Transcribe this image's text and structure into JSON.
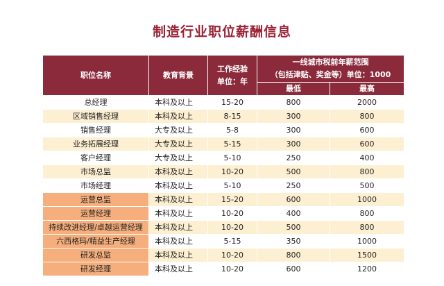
{
  "title": "制造行业职位薪酬信息",
  "table": {
    "header": {
      "position": "职位名称",
      "education": "教育背景",
      "experience_line1": "工作经验",
      "experience_line2": "单位：年",
      "salary_line1": "一线城市税前年薪范围",
      "salary_line2": "（包括津贴、奖金等）单位：1000",
      "min": "最低",
      "max": "最高"
    },
    "rows": [
      {
        "position": "总经理",
        "education": "本科及以上",
        "experience": "15-20",
        "min": "800",
        "max": "2000",
        "highlight": false
      },
      {
        "position": "区域销售经理",
        "education": "本科及以上",
        "experience": "8-15",
        "min": "300",
        "max": "800",
        "highlight": false
      },
      {
        "position": "销售经理",
        "education": "大专及以上",
        "experience": "5-8",
        "min": "300",
        "max": "600",
        "highlight": false
      },
      {
        "position": "业务拓展经理",
        "education": "大专及以上",
        "experience": "5-15",
        "min": "300",
        "max": "600",
        "highlight": false
      },
      {
        "position": "客户经理",
        "education": "大专及以上",
        "experience": "5-10",
        "min": "250",
        "max": "400",
        "highlight": false
      },
      {
        "position": "市场总监",
        "education": "本科及以上",
        "experience": "10-20",
        "min": "500",
        "max": "800",
        "highlight": false
      },
      {
        "position": "市场经理",
        "education": "本科及以上",
        "experience": "5-10",
        "min": "250",
        "max": "500",
        "highlight": false
      },
      {
        "position": "运营总监",
        "education": "本科及以上",
        "experience": "15-20",
        "min": "600",
        "max": "1000",
        "highlight": true
      },
      {
        "position": "运营经理",
        "education": "本科及以上",
        "experience": "10-20",
        "min": "400",
        "max": "800",
        "highlight": true
      },
      {
        "position": "持续改进经理/卓越运营经理",
        "education": "本科及以上",
        "experience": "10-20",
        "min": "500",
        "max": "800",
        "highlight": true
      },
      {
        "position": "六西格玛/精益生产经理",
        "education": "本科及以上",
        "experience": "5-15",
        "min": "350",
        "max": "1000",
        "highlight": true
      },
      {
        "position": "研发总监",
        "education": "本科及以上",
        "experience": "10-20",
        "min": "800",
        "max": "1500",
        "highlight": true
      },
      {
        "position": "研发经理",
        "education": "本科及以上",
        "experience": "10-20",
        "min": "600",
        "max": "1200",
        "highlight": true
      }
    ]
  }
}
